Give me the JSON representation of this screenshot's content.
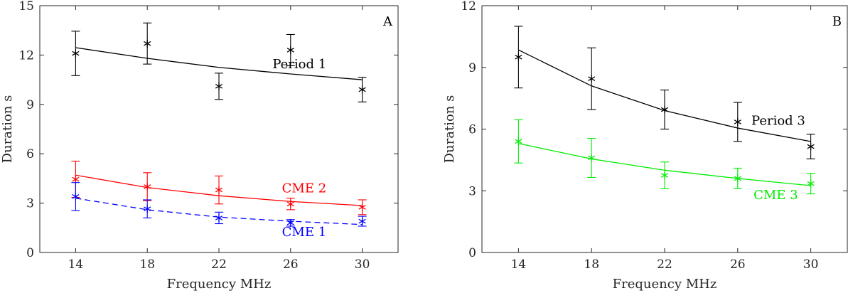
{
  "chart_data": [
    {
      "type": "line",
      "panel_label": "A",
      "xlabel": "Frequency MHz",
      "ylabel": "Duration s",
      "xlim": [
        12,
        32
      ],
      "ylim": [
        0,
        15
      ],
      "xticks": [
        14,
        18,
        22,
        26,
        30
      ],
      "yticks": [
        0,
        3,
        6,
        9,
        12,
        15
      ],
      "grid": false,
      "series": [
        {
          "name": "Period 1",
          "color": "#000000",
          "dashed": false,
          "x": [
            14,
            18,
            22,
            26,
            30
          ],
          "y": [
            12.1,
            12.7,
            10.1,
            12.3,
            9.9
          ],
          "err": [
            1.35,
            1.25,
            0.8,
            0.95,
            0.75
          ],
          "fit": [
            12.45,
            11.8,
            11.25,
            10.85,
            10.5
          ]
        },
        {
          "name": "CME 2",
          "color": "#ff0000",
          "dashed": false,
          "x": [
            14,
            18,
            22,
            26,
            30
          ],
          "y": [
            4.45,
            4.0,
            3.8,
            2.95,
            2.75
          ],
          "err": [
            1.1,
            0.85,
            0.85,
            0.35,
            0.45
          ],
          "fit": [
            4.7,
            3.95,
            3.45,
            3.1,
            2.85
          ]
        },
        {
          "name": "CME 1",
          "color": "#0000ff",
          "dashed": true,
          "x": [
            14,
            18,
            22,
            26,
            30
          ],
          "y": [
            3.4,
            2.65,
            2.1,
            1.8,
            1.9
          ],
          "err": [
            0.85,
            0.55,
            0.35,
            0.2,
            0.3
          ],
          "fit": [
            3.3,
            2.6,
            2.15,
            1.9,
            1.7
          ]
        }
      ]
    },
    {
      "type": "line",
      "panel_label": "B",
      "xlabel": "Frequency MHz",
      "ylabel": "Duration s",
      "xlim": [
        12,
        32
      ],
      "ylim": [
        0,
        12
      ],
      "xticks": [
        14,
        18,
        22,
        26,
        30
      ],
      "yticks": [
        0,
        3,
        6,
        9,
        12
      ],
      "grid": false,
      "series": [
        {
          "name": "Period 3",
          "color": "#000000",
          "dashed": false,
          "x": [
            14,
            18,
            22,
            26,
            30
          ],
          "y": [
            9.5,
            8.45,
            6.95,
            6.35,
            5.15
          ],
          "err": [
            1.5,
            1.5,
            0.95,
            0.95,
            0.6
          ],
          "fit": [
            9.85,
            8.1,
            6.9,
            6.05,
            5.4
          ]
        },
        {
          "name": "CME 3",
          "color": "#00ee00",
          "dashed": false,
          "x": [
            14,
            18,
            22,
            26,
            30
          ],
          "y": [
            5.4,
            4.6,
            3.75,
            3.6,
            3.35
          ],
          "err": [
            1.05,
            0.95,
            0.65,
            0.5,
            0.5
          ],
          "fit": [
            5.3,
            4.55,
            4.0,
            3.6,
            3.25
          ]
        }
      ]
    }
  ]
}
